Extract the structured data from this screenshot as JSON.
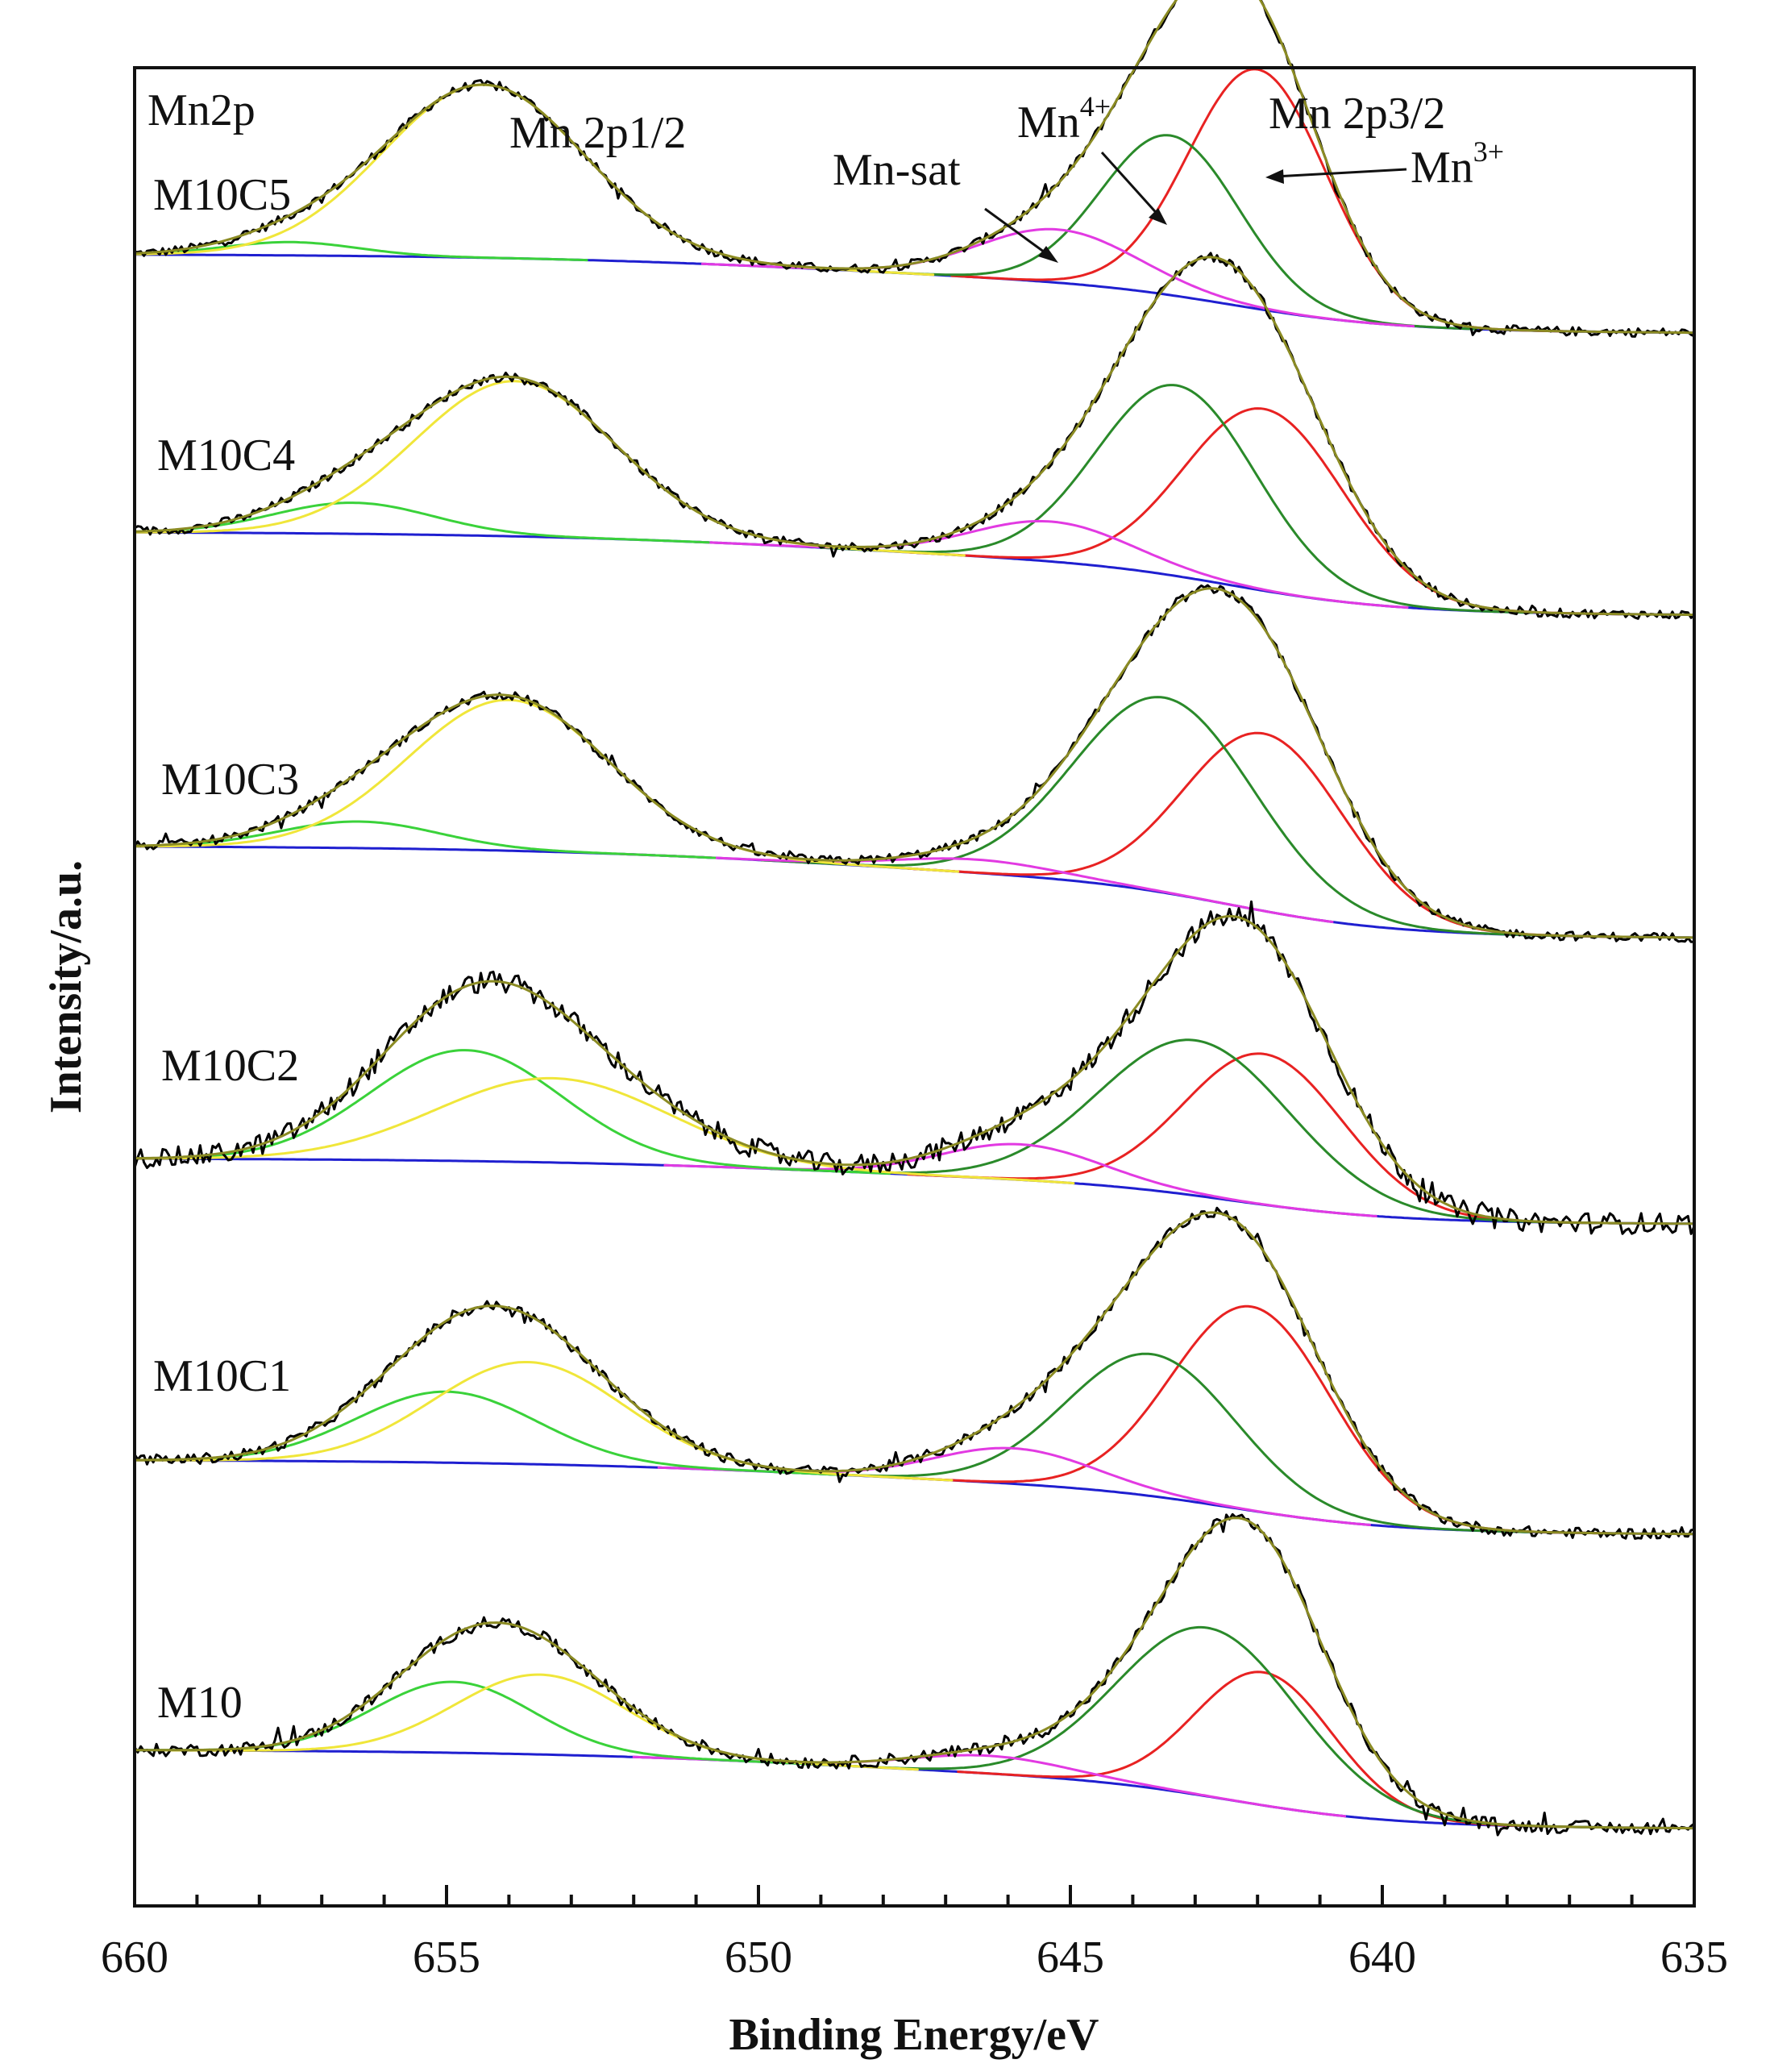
{
  "chart_data": {
    "type": "line",
    "title": "",
    "xlabel": "Binding Energy/eV",
    "ylabel": "Intensity/a.u.",
    "xlim": [
      660,
      635
    ],
    "x_direction": "reversed",
    "xticks": [
      660,
      655,
      650,
      645,
      640,
      635
    ],
    "yticks_shown": false,
    "region_label": "Mn2p",
    "annotations": [
      "Mn 2p1/2",
      "Mn-sat",
      "Mn",
      "Mn",
      "Mn 2p3/2"
    ],
    "annotation_superscripts": [
      "4+",
      "3+"
    ],
    "component_colors": {
      "Raw": "#000000",
      "Fit envelope": "#8b8b23",
      "Background": "#1f1fd0",
      "Mn3+": "#e82222",
      "Mn4+": "#2a8a2a",
      "Mn-sat": "#e23ae2",
      "2p1/2 component A": "#3ad23a",
      "2p1/2 component B": "#f0e63a"
    },
    "samples": [
      {
        "name": "M10C5",
        "baseline_low": 0.1,
        "baseline_high": 1.0,
        "noise": 0.05,
        "peaks": [
          {
            "component": "Mn3+",
            "center": 642.0,
            "fwhm": 2.6,
            "height": 2.7
          },
          {
            "component": "Mn4+",
            "center": 643.4,
            "fwhm": 2.6,
            "height": 1.8
          },
          {
            "component": "Mn-sat",
            "center": 645.2,
            "fwhm": 3.0,
            "height": 0.6
          },
          {
            "component": "2p1/2 component A",
            "center": 657.5,
            "fwhm": 2.5,
            "height": 0.15
          },
          {
            "component": "2p1/2 component B",
            "center": 654.4,
            "fwhm": 3.8,
            "height": 1.95
          }
        ]
      },
      {
        "name": "M10C4",
        "baseline_low": 0.1,
        "baseline_high": 1.05,
        "noise": 0.05,
        "peaks": [
          {
            "component": "Mn3+",
            "center": 641.9,
            "fwhm": 3.0,
            "height": 2.05
          },
          {
            "component": "Mn4+",
            "center": 643.3,
            "fwhm": 3.0,
            "height": 2.15
          },
          {
            "component": "Mn-sat",
            "center": 645.3,
            "fwhm": 3.0,
            "height": 0.45
          },
          {
            "component": "2p1/2 component A",
            "center": 656.5,
            "fwhm": 3.0,
            "height": 0.35
          },
          {
            "component": "2p1/2 component B",
            "center": 653.9,
            "fwhm": 3.8,
            "height": 1.75
          }
        ]
      },
      {
        "name": "M10C3",
        "baseline_low": 0.05,
        "baseline_high": 1.1,
        "noise": 0.05,
        "peaks": [
          {
            "component": "Mn3+",
            "center": 641.9,
            "fwhm": 3.0,
            "height": 2.0
          },
          {
            "component": "Mn4+",
            "center": 643.5,
            "fwhm": 3.4,
            "height": 2.2
          },
          {
            "component": "Mn-sat",
            "center": 646.5,
            "fwhm": 3.0,
            "height": 0.15
          },
          {
            "component": "2p1/2 component A",
            "center": 656.4,
            "fwhm": 3.0,
            "height": 0.3
          },
          {
            "component": "2p1/2 component B",
            "center": 654.0,
            "fwhm": 3.8,
            "height": 1.7
          }
        ]
      },
      {
        "name": "M10C2",
        "baseline_low": 0.1,
        "baseline_high": 0.85,
        "noise": 0.12,
        "peaks": [
          {
            "component": "Mn3+",
            "center": 641.9,
            "fwhm": 3.0,
            "height": 1.7
          },
          {
            "component": "Mn4+",
            "center": 643.0,
            "fwhm": 3.6,
            "height": 1.75
          },
          {
            "component": "Mn-sat",
            "center": 645.8,
            "fwhm": 3.0,
            "height": 0.4
          },
          {
            "component": "2p1/2 component A",
            "center": 654.7,
            "fwhm": 3.6,
            "height": 1.25
          },
          {
            "component": "2p1/2 component B",
            "center": 653.3,
            "fwhm": 4.4,
            "height": 0.95
          }
        ]
      },
      {
        "name": "M10C1",
        "baseline_low": 0.1,
        "baseline_high": 0.95,
        "noise": 0.06,
        "peaks": [
          {
            "component": "Mn3+",
            "center": 642.1,
            "fwhm": 3.0,
            "height": 2.3
          },
          {
            "component": "Mn4+",
            "center": 643.7,
            "fwhm": 3.2,
            "height": 1.6
          },
          {
            "component": "Mn-sat",
            "center": 645.9,
            "fwhm": 3.0,
            "height": 0.4
          },
          {
            "component": "2p1/2 component A",
            "center": 655.0,
            "fwhm": 3.4,
            "height": 0.8
          },
          {
            "component": "2p1/2 component B",
            "center": 653.7,
            "fwhm": 3.6,
            "height": 1.15
          }
        ]
      },
      {
        "name": "M10",
        "baseline_low": 0.1,
        "baseline_high": 1.0,
        "noise": 0.07,
        "peaks": [
          {
            "component": "Mn3+",
            "center": 641.9,
            "fwhm": 2.6,
            "height": 1.5
          },
          {
            "component": "Mn4+",
            "center": 642.8,
            "fwhm": 3.4,
            "height": 1.9
          },
          {
            "component": "Mn-sat",
            "center": 646.3,
            "fwhm": 3.0,
            "height": 0.2
          },
          {
            "component": "2p1/2 component A",
            "center": 654.9,
            "fwhm": 3.0,
            "height": 0.8
          },
          {
            "component": "2p1/2 component B",
            "center": 653.5,
            "fwhm": 3.2,
            "height": 0.9
          }
        ]
      }
    ]
  }
}
